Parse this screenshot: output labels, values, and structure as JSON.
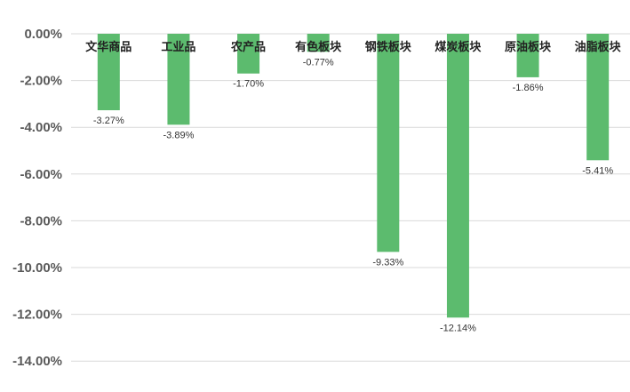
{
  "chart_data": {
    "type": "bar",
    "title": "",
    "xlabel": "",
    "ylabel": "",
    "categories": [
      "文华商品",
      "工业品",
      "农产品",
      "有色板块",
      "钢铁板块",
      "煤炭板块",
      "原油板块",
      "油脂板块"
    ],
    "values": [
      -3.27,
      -3.89,
      -1.7,
      -0.77,
      -9.33,
      -12.14,
      -1.86,
      -5.41
    ],
    "data_labels": [
      "-3.27%",
      "-3.89%",
      "-1.70%",
      "-0.77%",
      "-9.33%",
      "-12.14%",
      "-1.86%",
      "-5.41%"
    ],
    "y_ticks": [
      0,
      -2,
      -4,
      -6,
      -8,
      -10,
      -12,
      -14
    ],
    "y_tick_labels": [
      "0.00%",
      "-2.00%",
      "-4.00%",
      "-6.00%",
      "-8.00%",
      "-10.00%",
      "-12.00%",
      "-14.00%"
    ],
    "ylim": [
      -14,
      0
    ],
    "grid": true,
    "legend": "none",
    "bar_color": "#5cbb6e",
    "category_label_position": "top"
  }
}
